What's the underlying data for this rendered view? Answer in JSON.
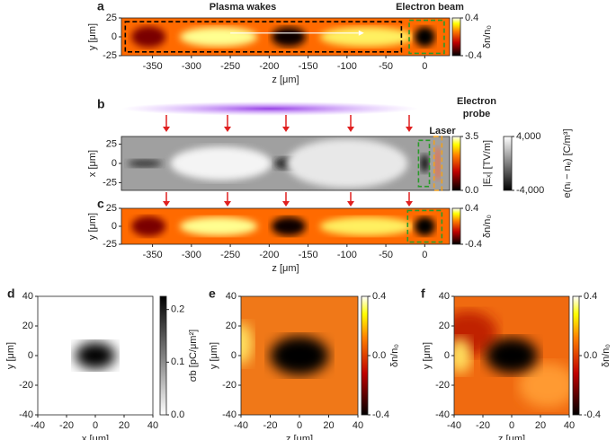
{
  "chart_data": [
    {
      "type": "heatmap",
      "panel": "a",
      "xlabel": "z [μm]",
      "ylabel": "y [μm]",
      "xlim": [
        -390,
        32
      ],
      "xticks": [
        -350,
        -300,
        -250,
        -200,
        -150,
        -100,
        -50,
        0
      ],
      "ylim": [
        -25,
        25
      ],
      "yticks": [
        -25,
        0,
        25
      ],
      "colormap": "hot",
      "annotations": [
        "Plasma wakes",
        "Electron beam"
      ],
      "colorbar": {
        "label": "δn/n₀",
        "lim": [
          -0.4,
          0.4
        ],
        "ticks": [
          -0.4,
          0.4
        ]
      }
    },
    {
      "type": "heatmap",
      "panel": "b",
      "ylabel": "x [μm]",
      "xlim": [
        -390,
        32
      ],
      "ylim": [
        -35,
        35
      ],
      "yticks": [
        -25,
        0,
        25
      ],
      "colormap": "gray",
      "annotations": [
        "Electron",
        "probe",
        "Laser"
      ],
      "colorbar": {
        "label": "|Eₓ| [TV/m]",
        "lim": [
          0,
          3.5
        ],
        "ticks": [
          {
            "value": 0,
            "label": "0.0"
          },
          3.5
        ],
        "colormap": "hot"
      },
      "colorbar2": {
        "label": "e(nᵢ − nₑ) [C/m³]",
        "lim": [
          -4000,
          4000
        ],
        "ticks": [
          {
            "value": -4000,
            "label": "-4,000"
          },
          {
            "value": 4000,
            "label": "4,000"
          }
        ],
        "colormap": "gray"
      }
    },
    {
      "type": "heatmap",
      "panel": "c",
      "xlabel": "z [μm]",
      "ylabel": "y [μm]",
      "xlim": [
        -390,
        32
      ],
      "xticks": [
        -350,
        -300,
        -250,
        -200,
        -150,
        -100,
        -50,
        0
      ],
      "ylim": [
        -25,
        25
      ],
      "yticks": [
        -25,
        0,
        25
      ],
      "colormap": "hot",
      "colorbar": {
        "label": "δn/n₀",
        "lim": [
          -0.4,
          0.4
        ],
        "ticks": [
          -0.4,
          0.4
        ]
      }
    },
    {
      "type": "heatmap",
      "panel": "d",
      "xlabel": "x [μm]",
      "ylabel": "y [μm]",
      "xlim": [
        -40,
        40
      ],
      "xticks": [
        -40,
        -20,
        0,
        20,
        40
      ],
      "ylim": [
        -40,
        40
      ],
      "yticks": [
        -40,
        -20,
        0,
        20,
        40
      ],
      "colormap": "gray_r",
      "colorbar": {
        "label": "σb [pC/μm²]",
        "lim": [
          0,
          0.225
        ],
        "ticks": [
          {
            "value": 0,
            "label": "0.0"
          },
          0.1,
          0.2
        ],
        "colormap": "gray_r"
      }
    },
    {
      "type": "heatmap",
      "panel": "e",
      "xlabel": "z [μm]",
      "ylabel": "y [μm]",
      "xlim": [
        -40,
        40
      ],
      "xticks": [
        -40,
        -20,
        0,
        20,
        40
      ],
      "ylim": [
        -40,
        40
      ],
      "yticks": [
        -40,
        -20,
        0,
        20,
        40
      ],
      "colormap": "hot",
      "colorbar": {
        "label": "δn/n₀",
        "lim": [
          -0.4,
          0.4
        ],
        "ticks": [
          -0.4,
          {
            "value": 0,
            "label": "0.0"
          },
          0.4
        ]
      }
    },
    {
      "type": "heatmap",
      "panel": "f",
      "xlabel": "z [μm]",
      "ylabel": "y [μm]",
      "xlim": [
        -40,
        40
      ],
      "xticks": [
        -40,
        -20,
        0,
        20,
        40
      ],
      "ylim": [
        -40,
        40
      ],
      "yticks": [
        -40,
        -20,
        0,
        20,
        40
      ],
      "colormap": "hot",
      "colorbar": {
        "label": "δn/n₀",
        "lim": [
          -0.4,
          0.4
        ],
        "ticks": [
          -0.4,
          {
            "value": 0,
            "label": "0.0"
          },
          0.4
        ]
      }
    }
  ]
}
